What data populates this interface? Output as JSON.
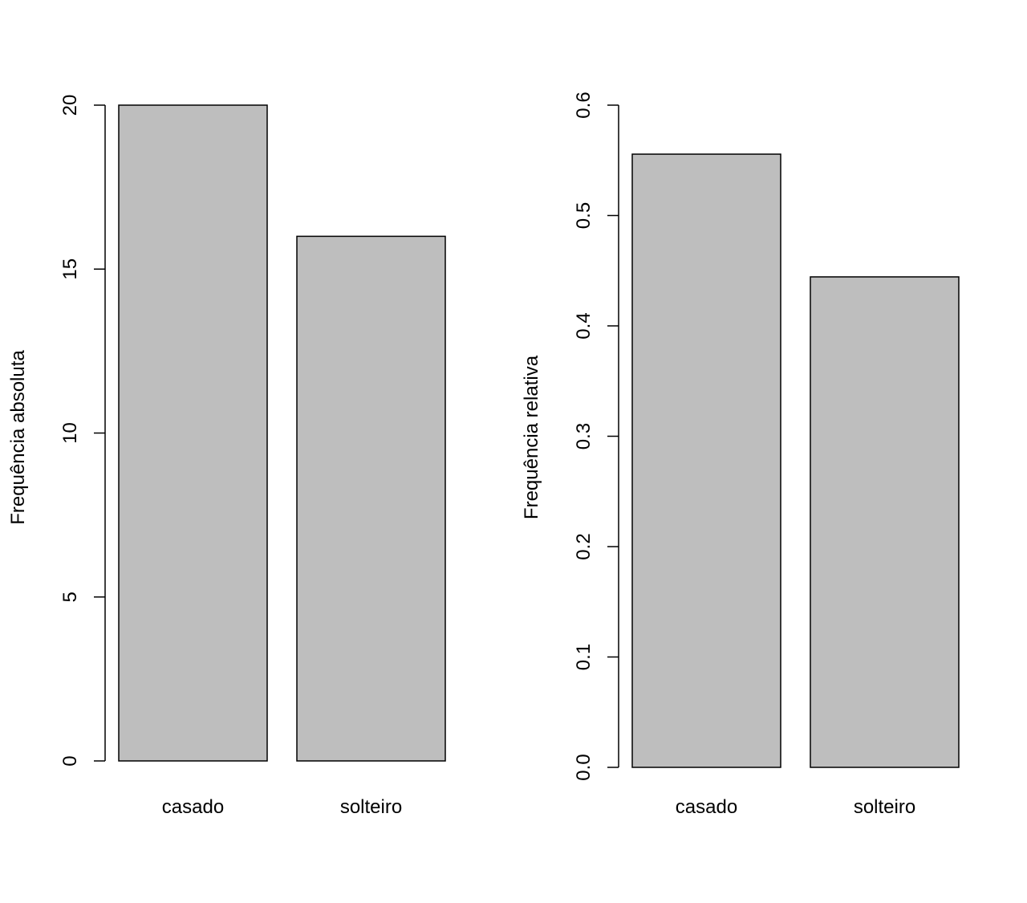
{
  "chart_data": [
    {
      "type": "bar",
      "categories": [
        "casado",
        "solteiro"
      ],
      "values": [
        20,
        16
      ],
      "title": "",
      "xlabel": "",
      "ylabel": "Frequência absoluta",
      "ylim": [
        0,
        20
      ],
      "yticks": [
        0,
        5,
        10,
        15,
        20
      ],
      "ytick_labels": [
        "0",
        "5",
        "10",
        "15",
        "20"
      ],
      "bar_color": "#bebebe",
      "grid": false,
      "legend": "none"
    },
    {
      "type": "bar",
      "categories": [
        "casado",
        "solteiro"
      ],
      "values": [
        0.5556,
        0.4444
      ],
      "title": "",
      "xlabel": "",
      "ylabel": "Frequência relativa",
      "ylim": [
        0,
        0.6
      ],
      "yticks": [
        0,
        0.1,
        0.2,
        0.3,
        0.4,
        0.5,
        0.6
      ],
      "ytick_labels": [
        "0.0",
        "0.1",
        "0.2",
        "0.3",
        "0.4",
        "0.5",
        "0.6"
      ],
      "bar_color": "#bebebe",
      "grid": false,
      "legend": "none"
    }
  ]
}
